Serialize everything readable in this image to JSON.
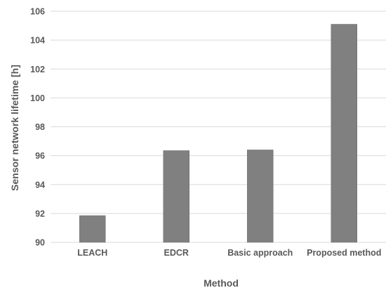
{
  "chart_data": {
    "type": "bar",
    "title": "",
    "xlabel": "Method",
    "ylabel": "Sensor network lifetime [h]",
    "categories": [
      "LEACH",
      "EDCR",
      "Basic approach",
      "Proposed method"
    ],
    "values": [
      91.85,
      96.35,
      96.4,
      105.1
    ],
    "ylim": [
      90,
      106
    ],
    "yticks": [
      90,
      92,
      94,
      96,
      98,
      100,
      102,
      104,
      106
    ],
    "grid": true,
    "legend": "none",
    "bar_color": "#808080"
  }
}
